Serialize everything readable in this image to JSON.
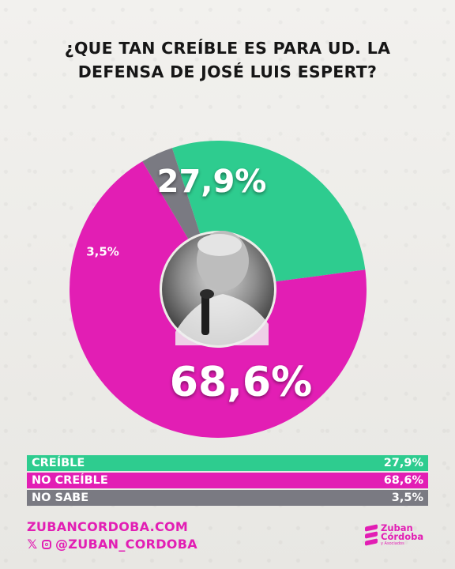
{
  "title": "¿QUE TAN CREÍBLE ES PARA UD. LA DEFENSA DE JOSÉ LUIS ESPERT?",
  "chart_data": {
    "type": "pie",
    "title": "¿QUE TAN CREÍBLE ES PARA UD. LA DEFENSA DE JOSÉ LUIS ESPERT?",
    "categories": [
      "CREÍBLE",
      "NO CREÍBLE",
      "NO SABE"
    ],
    "values": [
      27.9,
      68.6,
      3.5
    ],
    "labels": [
      "27,9%",
      "68,6%",
      "3,5%"
    ],
    "colors": [
      "#2ecc8f",
      "#e21eb4",
      "#7a7a82"
    ]
  },
  "legend": [
    {
      "label": "CREÍBLE",
      "value": "27,9%",
      "color": "#2ecc8f"
    },
    {
      "label": "NO CREÍBLE",
      "value": "68,6%",
      "color": "#e21eb4"
    },
    {
      "label": "NO SABE",
      "value": "3,5%",
      "color": "#7a7a82"
    }
  ],
  "footer": {
    "url": "ZUBANCORDOBA.COM",
    "handle": "@ZUBAN_CORDOBA",
    "icons": [
      "x-icon",
      "instagram-icon"
    ]
  },
  "logo": {
    "line1": "Zuban",
    "line2": "Córdoba",
    "line3": "y Asociados"
  }
}
